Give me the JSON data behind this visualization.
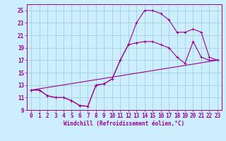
{
  "xlabel": "Windchill (Refroidissement éolien,°C)",
  "bg_color": "#cceeff",
  "line_color": "#990099",
  "xlim": [
    -0.5,
    23.5
  ],
  "ylim": [
    9,
    26
  ],
  "xticks": [
    0,
    1,
    2,
    3,
    4,
    5,
    6,
    7,
    8,
    9,
    10,
    11,
    12,
    13,
    14,
    15,
    16,
    17,
    18,
    19,
    20,
    21,
    22,
    23
  ],
  "yticks": [
    9,
    11,
    13,
    15,
    17,
    19,
    21,
    23,
    25
  ],
  "line1_x": [
    0,
    1,
    2,
    3,
    4,
    5,
    6,
    7,
    8,
    9,
    10,
    11,
    12,
    13,
    14,
    15,
    16,
    17,
    18,
    19,
    20,
    21,
    22,
    23
  ],
  "line1_y": [
    12.2,
    12.2,
    11.3,
    11.0,
    11.0,
    10.5,
    9.7,
    9.6,
    13.0,
    13.2,
    14.0,
    17.0,
    19.5,
    19.8,
    20.0,
    20.0,
    19.5,
    19.0,
    17.5,
    16.5,
    20.0,
    17.5,
    17.0,
    17.0
  ],
  "line2_x": [
    0,
    1,
    2,
    3,
    4,
    5,
    6,
    7,
    8,
    9,
    10,
    11,
    12,
    13,
    14,
    15,
    16,
    17,
    18,
    19,
    20,
    21,
    22,
    23
  ],
  "line2_y": [
    12.2,
    12.2,
    11.3,
    11.0,
    11.0,
    10.5,
    9.7,
    9.6,
    13.0,
    13.2,
    14.0,
    17.0,
    19.5,
    23.0,
    25.0,
    25.0,
    24.5,
    23.5,
    21.5,
    21.5,
    22.0,
    21.5,
    17.5,
    17.0
  ],
  "line3_x": [
    0,
    23
  ],
  "line3_y": [
    12.2,
    17.0
  ],
  "grid_color": "#99cccc",
  "tick_fontsize": 5.5,
  "xlabel_fontsize": 5.5,
  "marker_size": 2.5,
  "linewidth": 0.8
}
